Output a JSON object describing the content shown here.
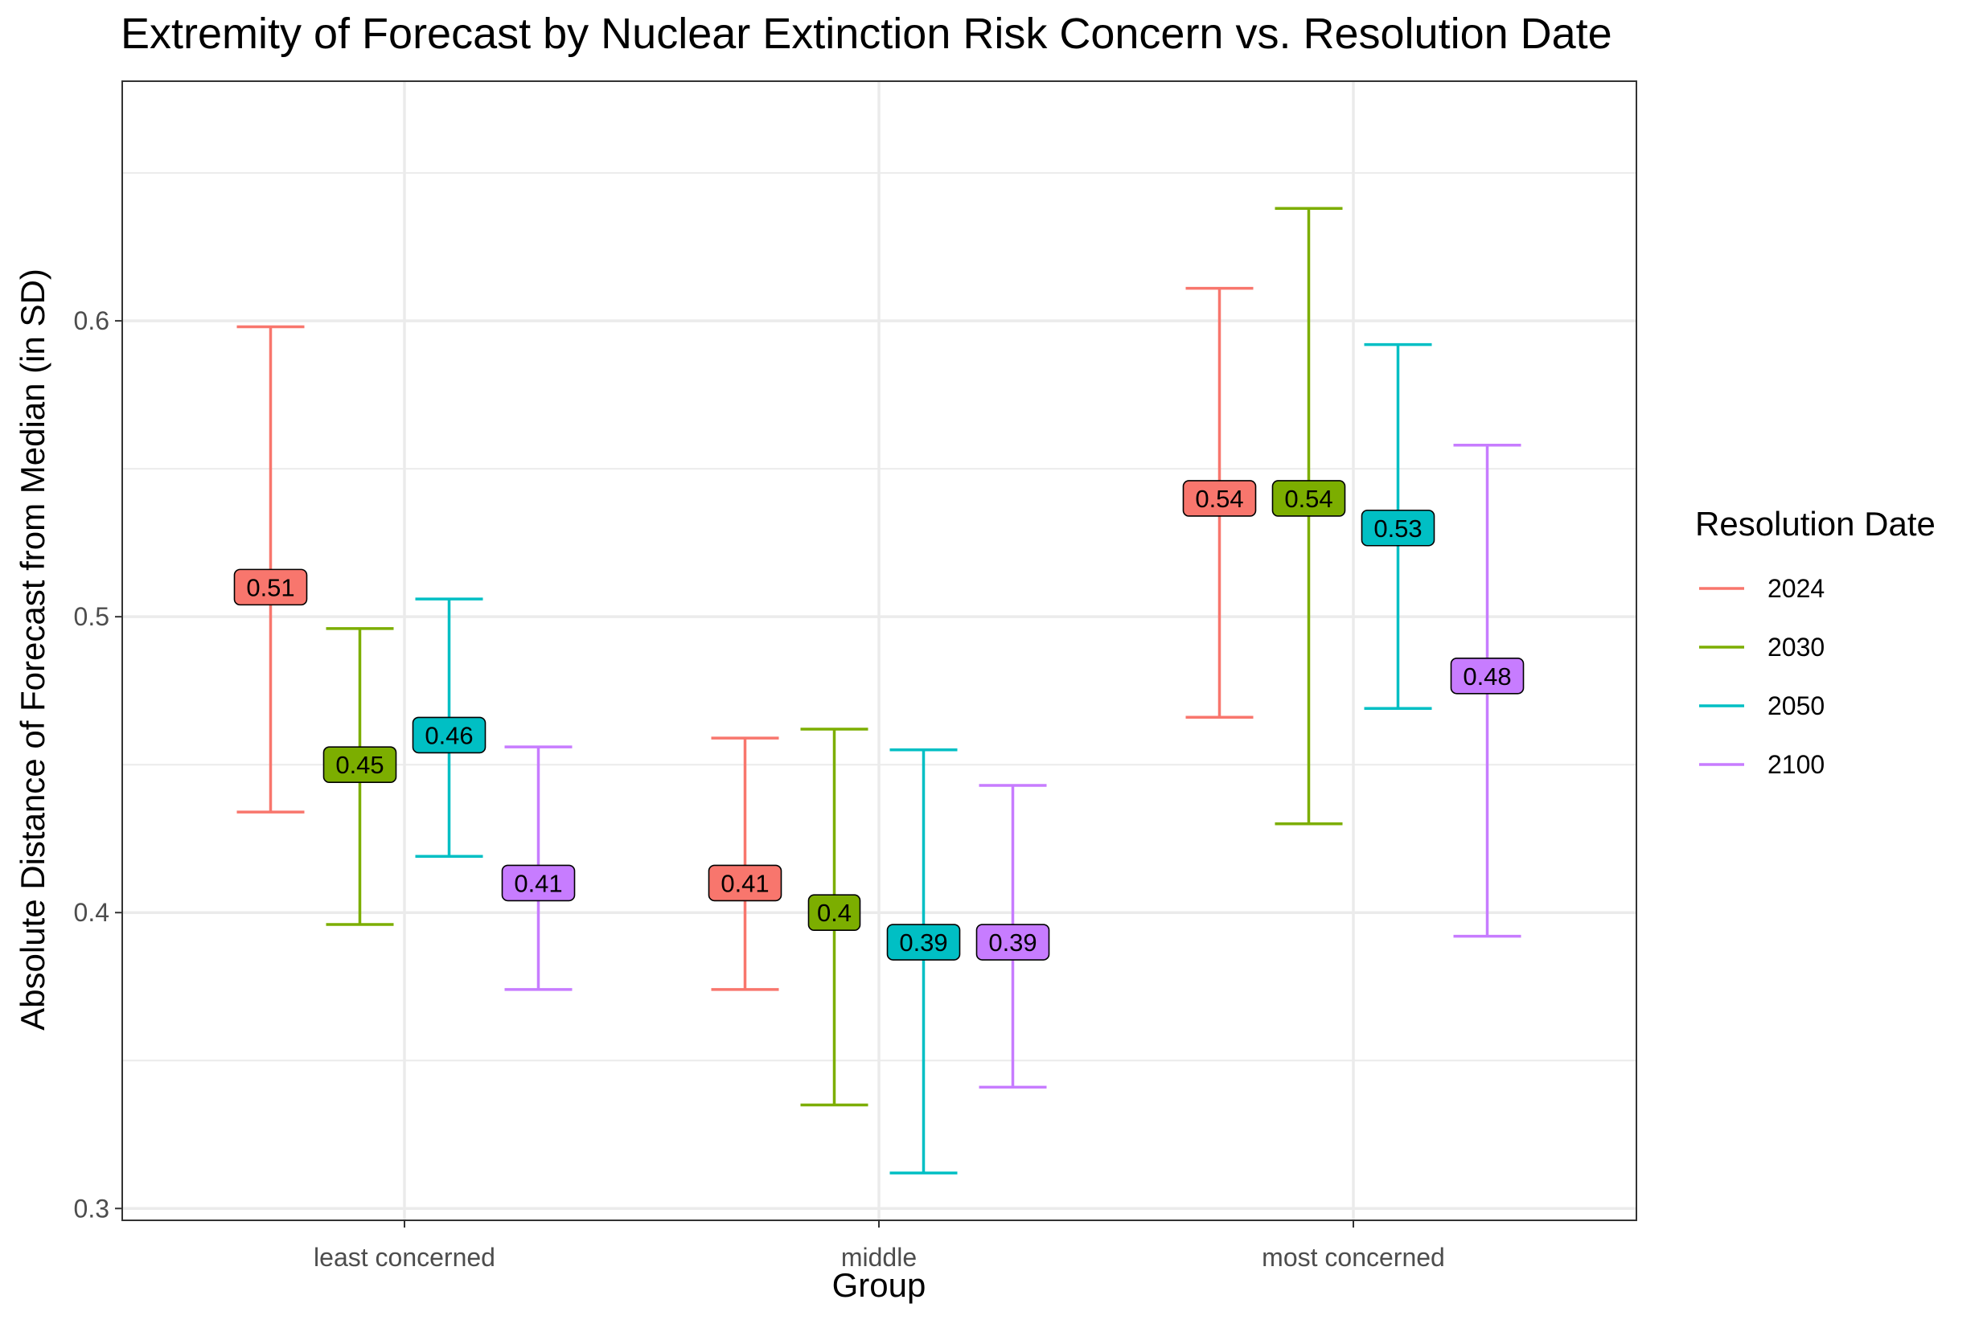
{
  "chart_data": {
    "type": "errorbar",
    "title": "Extremity of Forecast by Nuclear Extinction Risk Concern vs. Resolution Date",
    "xlabel": "Group",
    "ylabel": "Absolute Distance of Forecast from Median (in SD)",
    "categories": [
      "least concerned",
      "middle",
      "most concerned"
    ],
    "ylim": [
      0.296,
      0.681
    ],
    "yticks": [
      0.3,
      0.4,
      0.5,
      0.6
    ],
    "ytick_labels": [
      "0.3",
      "0.4",
      "0.5",
      "0.6"
    ],
    "grid": true,
    "legend": {
      "title": "Resolution Date",
      "position": "right"
    },
    "series": [
      {
        "name": "2024",
        "color": "#F8766D",
        "means": [
          0.51,
          0.41,
          0.54
        ],
        "labels": [
          "0.51",
          "0.41",
          "0.54"
        ],
        "lower": [
          0.434,
          0.374,
          0.466
        ],
        "upper": [
          0.598,
          0.459,
          0.611
        ]
      },
      {
        "name": "2030",
        "color": "#7CAE00",
        "means": [
          0.45,
          0.4,
          0.54
        ],
        "labels": [
          "0.45",
          "0.4",
          "0.54"
        ],
        "lower": [
          0.396,
          0.335,
          0.43
        ],
        "upper": [
          0.496,
          0.462,
          0.638
        ]
      },
      {
        "name": "2050",
        "color": "#00BFC4",
        "means": [
          0.46,
          0.39,
          0.53
        ],
        "labels": [
          "0.46",
          "0.39",
          "0.53"
        ],
        "lower": [
          0.419,
          0.312,
          0.469
        ],
        "upper": [
          0.506,
          0.455,
          0.592
        ]
      },
      {
        "name": "2100",
        "color": "#C77CFF",
        "means": [
          0.41,
          0.39,
          0.48
        ],
        "labels": [
          "0.41",
          "0.39",
          "0.48"
        ],
        "lower": [
          0.374,
          0.341,
          0.392
        ],
        "upper": [
          0.456,
          0.443,
          0.558
        ]
      }
    ]
  }
}
